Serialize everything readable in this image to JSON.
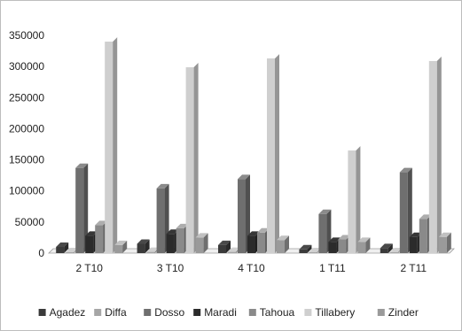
{
  "colors": {
    "Agadez": "#3a3a3a",
    "Diffa": "#a6a6a6",
    "Dosso": "#6f6f6f",
    "Maradi": "#2b2b2b",
    "Tahoua": "#8a8a8a",
    "Tillabery": "#cfcfcf",
    "Zinder": "#9a9a9a"
  },
  "chart_data": {
    "type": "bar",
    "title": "",
    "xlabel": "",
    "ylabel": "",
    "ylim": [
      0,
      350000
    ],
    "yticks": [
      0,
      50000,
      100000,
      150000,
      200000,
      250000,
      300000,
      350000
    ],
    "grid": false,
    "legend_position": "bottom",
    "categories": [
      "2 T10",
      "3 T10",
      "4 T10",
      "1 T11",
      "2 T11"
    ],
    "series": [
      {
        "name": "Agadez",
        "values": [
          10000,
          15000,
          13000,
          6000,
          8000
        ]
      },
      {
        "name": "Diffa",
        "values": [
          1500,
          2000,
          2000,
          1500,
          1500
        ]
      },
      {
        "name": "Dosso",
        "values": [
          137000,
          104000,
          119000,
          63000,
          130000
        ]
      },
      {
        "name": "Maradi",
        "values": [
          28000,
          31000,
          28000,
          18000,
          26000
        ]
      },
      {
        "name": "Tahoua",
        "values": [
          45000,
          40000,
          33000,
          22000,
          55000
        ]
      },
      {
        "name": "Tillabery",
        "values": [
          340000,
          299000,
          313000,
          165000,
          309000
        ]
      },
      {
        "name": "Zinder",
        "values": [
          13000,
          25000,
          21000,
          18000,
          26000
        ]
      }
    ]
  }
}
